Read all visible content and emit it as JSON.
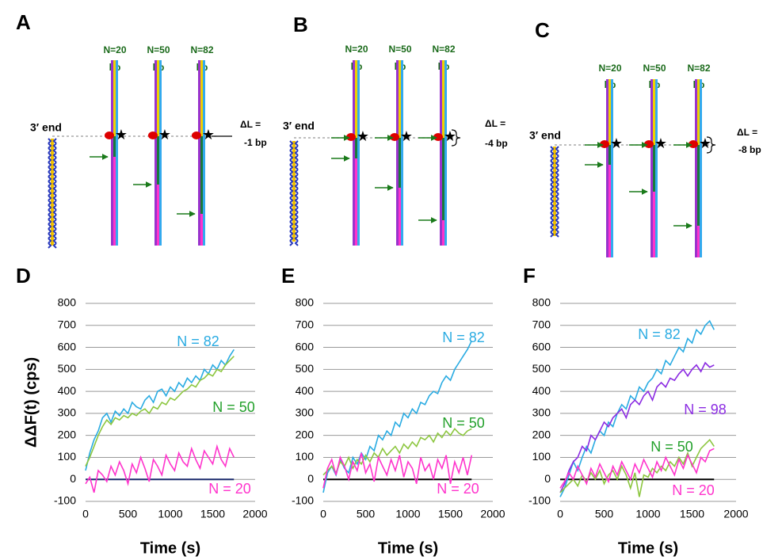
{
  "diagrams": [
    {
      "label": "A",
      "end_label": "3′ end",
      "strands": [
        {
          "n": "N=20",
          "unit": "bp"
        },
        {
          "n": "N=50",
          "unit": "bp"
        },
        {
          "n": "N=82",
          "unit": "bp"
        }
      ],
      "delta_label": "ΔL =",
      "delta_value": "-1 bp"
    },
    {
      "label": "B",
      "end_label": "3′ end",
      "strands": [
        {
          "n": "N=20",
          "unit": "bp"
        },
        {
          "n": "N=50",
          "unit": "bp"
        },
        {
          "n": "N=82",
          "unit": "bp"
        }
      ],
      "delta_label": "ΔL =",
      "delta_value": "-4 bp"
    },
    {
      "label": "C",
      "end_label": "3′ end",
      "strands": [
        {
          "n": "N=20",
          "unit": "bp"
        },
        {
          "n": "N=50",
          "unit": "bp"
        },
        {
          "n": "N=82",
          "unit": "bp"
        }
      ],
      "delta_label": "ΔL =",
      "delta_value": "-8 bp"
    }
  ],
  "chart_data": [
    {
      "type": "line",
      "panel": "D",
      "y_label": "ΔΔF(t) (cps)",
      "x_label": "Time (s)",
      "grid": true,
      "zero_line_color": "#1a2a6c",
      "xlim": [
        0,
        2000
      ],
      "xticks": [
        0,
        500,
        1000,
        1500,
        2000
      ],
      "ylim": [
        -100,
        800
      ],
      "yticks": [
        -100,
        0,
        100,
        200,
        300,
        400,
        500,
        600,
        700,
        800
      ],
      "x": [
        0,
        50,
        100,
        150,
        200,
        250,
        300,
        350,
        400,
        450,
        500,
        550,
        600,
        650,
        700,
        750,
        800,
        850,
        900,
        950,
        1000,
        1050,
        1100,
        1150,
        1200,
        1250,
        1300,
        1350,
        1400,
        1450,
        1500,
        1550,
        1600,
        1650,
        1700,
        1750
      ],
      "series": [
        {
          "name": "N = 82",
          "color": "#29abe2",
          "label_color": "#29abe2",
          "values": [
            40,
            120,
            180,
            220,
            280,
            300,
            260,
            310,
            290,
            320,
            300,
            350,
            330,
            320,
            360,
            380,
            350,
            400,
            410,
            380,
            420,
            400,
            440,
            420,
            460,
            440,
            470,
            450,
            500,
            480,
            520,
            500,
            540,
            520,
            560,
            590
          ]
        },
        {
          "name": "N = 50",
          "color": "#8cc63f",
          "label_color": "#22a02a",
          "values": [
            60,
            100,
            150,
            200,
            240,
            270,
            250,
            280,
            270,
            290,
            280,
            300,
            290,
            310,
            320,
            300,
            330,
            320,
            350,
            340,
            370,
            360,
            380,
            400,
            410,
            430,
            420,
            450,
            460,
            480,
            470,
            500,
            490,
            520,
            540,
            560
          ]
        },
        {
          "name": "N = 20",
          "color": "#ff33cc",
          "label_color": "#ff33cc",
          "values": [
            -20,
            10,
            -60,
            40,
            20,
            -10,
            60,
            20,
            80,
            40,
            -20,
            70,
            30,
            100,
            50,
            -10,
            90,
            60,
            20,
            110,
            70,
            40,
            120,
            80,
            60,
            140,
            90,
            50,
            130,
            100,
            70,
            150,
            90,
            60,
            140,
            100
          ]
        }
      ]
    },
    {
      "type": "line",
      "panel": "E",
      "x_label": "Time (s)",
      "grid": true,
      "zero_line_color": "#000000",
      "xlim": [
        0,
        2000
      ],
      "xticks": [
        0,
        500,
        1000,
        1500,
        2000
      ],
      "ylim": [
        -100,
        800
      ],
      "yticks": [
        -100,
        0,
        100,
        200,
        300,
        400,
        500,
        600,
        700,
        800
      ],
      "x": [
        0,
        50,
        100,
        150,
        200,
        250,
        300,
        350,
        400,
        450,
        500,
        550,
        600,
        650,
        700,
        750,
        800,
        850,
        900,
        950,
        1000,
        1050,
        1100,
        1150,
        1200,
        1250,
        1300,
        1350,
        1400,
        1450,
        1500,
        1550,
        1600,
        1650,
        1700,
        1750
      ],
      "series": [
        {
          "name": "N = 82",
          "color": "#29abe2",
          "label_color": "#29abe2",
          "values": [
            -60,
            30,
            60,
            20,
            90,
            50,
            30,
            100,
            70,
            120,
            90,
            150,
            130,
            200,
            180,
            220,
            200,
            260,
            240,
            300,
            280,
            320,
            300,
            350,
            340,
            380,
            400,
            390,
            440,
            470,
            450,
            500,
            530,
            560,
            590,
            630
          ]
        },
        {
          "name": "N = 50",
          "color": "#8cc63f",
          "label_color": "#22a02a",
          "values": [
            20,
            40,
            60,
            30,
            80,
            60,
            100,
            50,
            90,
            70,
            110,
            80,
            120,
            100,
            140,
            110,
            130,
            150,
            120,
            160,
            140,
            170,
            150,
            190,
            180,
            200,
            170,
            210,
            190,
            220,
            200,
            230,
            210,
            200,
            220,
            230
          ]
        },
        {
          "name": "N = 20",
          "color": "#ff33cc",
          "label_color": "#ff33cc",
          "values": [
            -40,
            50,
            90,
            20,
            100,
            60,
            0,
            80,
            40,
            120,
            30,
            70,
            -10,
            100,
            60,
            20,
            90,
            40,
            110,
            10,
            80,
            50,
            -20,
            100,
            40,
            70,
            0,
            90,
            50,
            110,
            -20,
            80,
            30,
            100,
            20,
            110
          ]
        }
      ]
    },
    {
      "type": "line",
      "panel": "F",
      "x_label": "Time (s)",
      "grid": true,
      "zero_line_color": "#000000",
      "xlim": [
        0,
        2000
      ],
      "xticks": [
        0,
        500,
        1000,
        1500,
        2000
      ],
      "ylim": [
        -100,
        800
      ],
      "yticks": [
        -100,
        0,
        100,
        200,
        300,
        400,
        500,
        600,
        700,
        800
      ],
      "x": [
        0,
        50,
        100,
        150,
        200,
        250,
        300,
        350,
        400,
        450,
        500,
        550,
        600,
        650,
        700,
        750,
        800,
        850,
        900,
        950,
        1000,
        1050,
        1100,
        1150,
        1200,
        1250,
        1300,
        1350,
        1400,
        1450,
        1500,
        1550,
        1600,
        1650,
        1700,
        1750
      ],
      "series": [
        {
          "name": "N = 82",
          "color": "#29abe2",
          "label_color": "#29abe2",
          "values": [
            -80,
            -40,
            20,
            80,
            40,
            100,
            150,
            120,
            180,
            220,
            200,
            260,
            240,
            300,
            340,
            320,
            380,
            360,
            420,
            400,
            440,
            460,
            500,
            480,
            540,
            520,
            560,
            600,
            580,
            640,
            620,
            680,
            660,
            700,
            720,
            680
          ]
        },
        {
          "name": "N = 98",
          "color": "#8b2be2",
          "label_color": "#8b2be2",
          "values": [
            -60,
            -20,
            40,
            80,
            100,
            150,
            130,
            200,
            180,
            220,
            260,
            240,
            280,
            300,
            320,
            280,
            340,
            360,
            340,
            380,
            400,
            360,
            420,
            440,
            420,
            460,
            450,
            480,
            500,
            470,
            500,
            520,
            490,
            530,
            510,
            520
          ]
        },
        {
          "name": "N = 50",
          "color": "#8cc63f",
          "label_color": "#22a02a",
          "values": [
            -60,
            -40,
            -20,
            0,
            -30,
            20,
            -10,
            30,
            0,
            40,
            -20,
            20,
            40,
            0,
            60,
            20,
            -40,
            30,
            -80,
            20,
            10,
            50,
            30,
            60,
            40,
            80,
            60,
            100,
            70,
            120,
            60,
            100,
            140,
            160,
            180,
            150
          ]
        },
        {
          "name": "N = 20",
          "color": "#ff33cc",
          "label_color": "#ff33cc",
          "values": [
            -40,
            -10,
            30,
            0,
            60,
            20,
            -20,
            50,
            10,
            70,
            30,
            -10,
            60,
            20,
            80,
            40,
            0,
            70,
            30,
            90,
            50,
            10,
            80,
            40,
            100,
            60,
            20,
            90,
            50,
            110,
            70,
            30,
            100,
            80,
            130,
            140
          ]
        }
      ]
    }
  ]
}
